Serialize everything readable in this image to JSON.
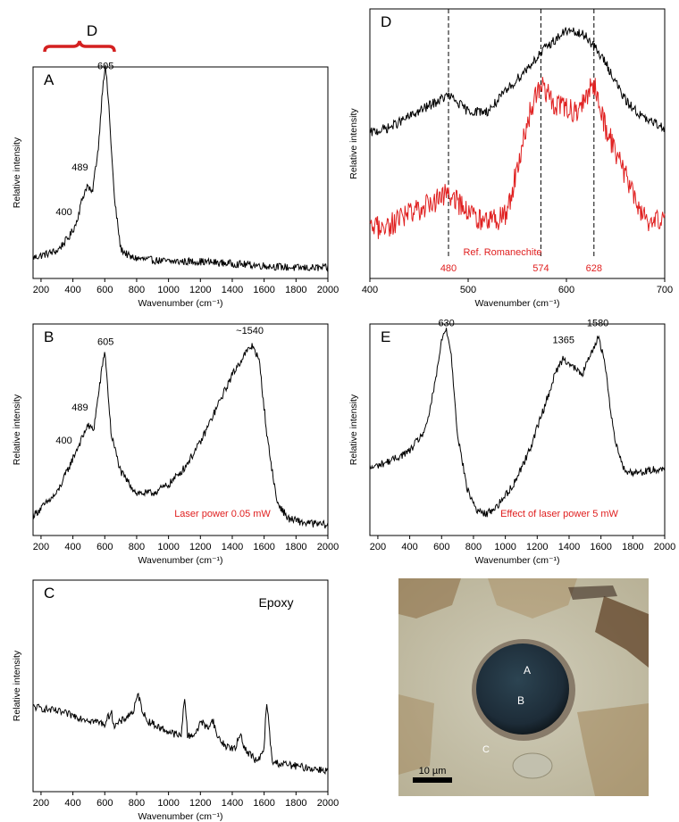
{
  "figure": {
    "top_bracket_label": "D",
    "micrograph": {
      "labels": [
        "A",
        "B",
        "C"
      ],
      "scale_bar_label": "10 µm",
      "colors": {
        "background": "#c9c4ad",
        "particle": "#1f3140",
        "debris": "#8a4a1c"
      }
    }
  },
  "chart_data": [
    {
      "id": "A",
      "type": "line",
      "panel_label": "A",
      "xlabel": "Wavenumber (cm⁻¹)",
      "ylabel": "Relative intensity",
      "xlim": [
        150,
        2000
      ],
      "xticks": [
        200,
        400,
        600,
        800,
        1000,
        1200,
        1400,
        1600,
        1800,
        2000
      ],
      "annotations": [
        {
          "text": "400",
          "x": 400
        },
        {
          "text": "489",
          "x": 489
        },
        {
          "text": "605",
          "x": 605
        }
      ],
      "note": "",
      "series": [
        {
          "color": "#000000",
          "x": [
            160,
            300,
            380,
            420,
            460,
            489,
            520,
            560,
            590,
            605,
            625,
            660,
            700,
            760,
            850,
            1000,
            1200,
            1400,
            1600,
            1800,
            2000
          ],
          "y": [
            0.1,
            0.13,
            0.2,
            0.26,
            0.38,
            0.44,
            0.4,
            0.62,
            0.94,
            1.0,
            0.82,
            0.38,
            0.14,
            0.1,
            0.09,
            0.08,
            0.08,
            0.07,
            0.06,
            0.05,
            0.05
          ]
        }
      ]
    },
    {
      "id": "B",
      "type": "line",
      "panel_label": "B",
      "xlabel": "Wavenumber (cm⁻¹)",
      "ylabel": "Relative intensity",
      "xlim": [
        150,
        2000
      ],
      "xticks": [
        200,
        400,
        600,
        800,
        1000,
        1200,
        1400,
        1600,
        1800,
        2000
      ],
      "annotations": [
        {
          "text": "400",
          "x": 400
        },
        {
          "text": "489",
          "x": 489
        },
        {
          "text": "605",
          "x": 605
        },
        {
          "text": "~1540",
          "x": 1510
        }
      ],
      "note": "Laser power 0.05 mW",
      "series": [
        {
          "color": "#000000",
          "x": [
            160,
            300,
            380,
            420,
            470,
            489,
            530,
            570,
            600,
            640,
            700,
            800,
            900,
            1000,
            1100,
            1200,
            1300,
            1400,
            1480,
            1530,
            1570,
            1620,
            1680,
            1750,
            1850,
            2000
          ],
          "y": [
            0.1,
            0.2,
            0.33,
            0.4,
            0.48,
            0.52,
            0.5,
            0.72,
            0.88,
            0.48,
            0.3,
            0.2,
            0.2,
            0.24,
            0.32,
            0.44,
            0.6,
            0.76,
            0.86,
            0.9,
            0.82,
            0.46,
            0.16,
            0.08,
            0.06,
            0.05
          ]
        }
      ]
    },
    {
      "id": "C",
      "type": "line",
      "panel_label": "C",
      "xlabel": "Wavenumber (cm⁻¹)",
      "ylabel": "Relative intensity",
      "xlim": [
        150,
        2000
      ],
      "xticks": [
        200,
        400,
        600,
        800,
        1000,
        1200,
        1400,
        1600,
        1800,
        2000
      ],
      "annotations": [],
      "note": "Epoxy",
      "series": [
        {
          "color": "#000000",
          "x": [
            160,
            300,
            500,
            600,
            640,
            660,
            700,
            780,
            810,
            830,
            860,
            950,
            1080,
            1100,
            1120,
            1180,
            1200,
            1240,
            1280,
            1300,
            1350,
            1420,
            1450,
            1480,
            1560,
            1600,
            1615,
            1650,
            1800,
            2000
          ],
          "y": [
            0.4,
            0.38,
            0.34,
            0.32,
            0.38,
            0.31,
            0.33,
            0.38,
            0.46,
            0.4,
            0.34,
            0.3,
            0.26,
            0.46,
            0.26,
            0.28,
            0.34,
            0.3,
            0.34,
            0.27,
            0.22,
            0.2,
            0.28,
            0.2,
            0.14,
            0.2,
            0.44,
            0.14,
            0.12,
            0.1
          ]
        }
      ]
    },
    {
      "id": "D",
      "type": "line",
      "panel_label": "D",
      "xlabel": "Wavenumber (cm⁻¹)",
      "ylabel": "Relative intensity",
      "xlim": [
        400,
        700
      ],
      "xticks": [
        400,
        500,
        600,
        700
      ],
      "vlines": [
        {
          "x": 480,
          "label": "480"
        },
        {
          "x": 574,
          "label": "574"
        },
        {
          "x": 628,
          "label": "628"
        }
      ],
      "annotations": [
        {
          "text": "Ref. Romanechite",
          "x": 535
        }
      ],
      "note": "",
      "series": [
        {
          "color": "#000000",
          "x": [
            400,
            420,
            450,
            480,
            500,
            520,
            540,
            560,
            580,
            600,
            620,
            640,
            660,
            680,
            700
          ],
          "y": [
            0.54,
            0.56,
            0.62,
            0.68,
            0.62,
            0.62,
            0.7,
            0.78,
            0.86,
            0.92,
            0.9,
            0.8,
            0.66,
            0.59,
            0.56
          ]
        },
        {
          "name": "Ref. Romanechite",
          "color": "#e02020",
          "x": [
            400,
            420,
            440,
            460,
            480,
            500,
            520,
            540,
            555,
            565,
            574,
            590,
            610,
            628,
            640,
            660,
            680,
            700
          ],
          "y": [
            0.18,
            0.2,
            0.24,
            0.27,
            0.32,
            0.24,
            0.2,
            0.24,
            0.5,
            0.64,
            0.72,
            0.64,
            0.62,
            0.72,
            0.56,
            0.38,
            0.22,
            0.2
          ]
        }
      ]
    },
    {
      "id": "E",
      "type": "line",
      "panel_label": "E",
      "xlabel": "Wavenumber (cm⁻¹)",
      "ylabel": "Relative intensity",
      "xlim": [
        150,
        2000
      ],
      "xticks": [
        200,
        400,
        600,
        800,
        1000,
        1200,
        1400,
        1600,
        1800,
        2000
      ],
      "annotations": [
        {
          "text": "630",
          "x": 630
        },
        {
          "text": "1365",
          "x": 1365
        },
        {
          "text": "1580",
          "x": 1580
        }
      ],
      "note": "Effect of laser power 5 mW",
      "series": [
        {
          "color": "#000000",
          "x": [
            160,
            300,
            400,
            500,
            560,
            600,
            630,
            660,
            700,
            760,
            820,
            880,
            950,
            1050,
            1150,
            1250,
            1320,
            1365,
            1420,
            1480,
            1540,
            1580,
            1620,
            1680,
            1750,
            1850,
            2000
          ],
          "y": [
            0.32,
            0.36,
            0.4,
            0.5,
            0.72,
            0.92,
            0.98,
            0.86,
            0.48,
            0.22,
            0.12,
            0.1,
            0.14,
            0.24,
            0.4,
            0.62,
            0.78,
            0.84,
            0.8,
            0.76,
            0.86,
            0.94,
            0.84,
            0.48,
            0.3,
            0.3,
            0.32
          ]
        }
      ]
    }
  ]
}
